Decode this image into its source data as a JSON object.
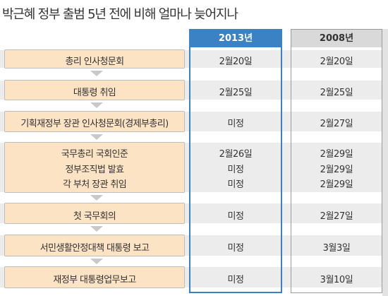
{
  "title": "박근혜 정부 출범 5년 전에 비해 얼마나 늦어지나",
  "columns": {
    "year_2013": "2013년",
    "year_2008": "2008년"
  },
  "colors": {
    "accent_blue": "#3b82c4",
    "box_fill": "#fbe3c4",
    "stripe_gray": "#ececec"
  },
  "rows": [
    {
      "label": "총리 인사청문회",
      "v2013": "2월20일",
      "v2008": "2월20일"
    },
    {
      "label": "대통령 취임",
      "v2013": "2월25일",
      "v2008": "2월25일"
    },
    {
      "label": "기획재정부 장관 인사청문회(경제부총리)",
      "v2013": "미정",
      "v2008": "2월27일"
    },
    {
      "label": "국무총리 국회인준",
      "v2013": "2월26일",
      "v2008": "2월29일"
    },
    {
      "label": "정부조직법 발효",
      "v2013": "미정",
      "v2008": "2월29일"
    },
    {
      "label": "각 부처 장관 취임",
      "v2013": "미정",
      "v2008": "2월29일"
    },
    {
      "label": "첫 국무회의",
      "v2013": "미정",
      "v2008": "2월27일"
    },
    {
      "label": "서민생활안정대책 대통령 보고",
      "v2013": "미정",
      "v2008": "3월3일"
    },
    {
      "label": "재정부 대통령업무보고",
      "v2013": "미정",
      "v2008": "3월10일"
    }
  ]
}
